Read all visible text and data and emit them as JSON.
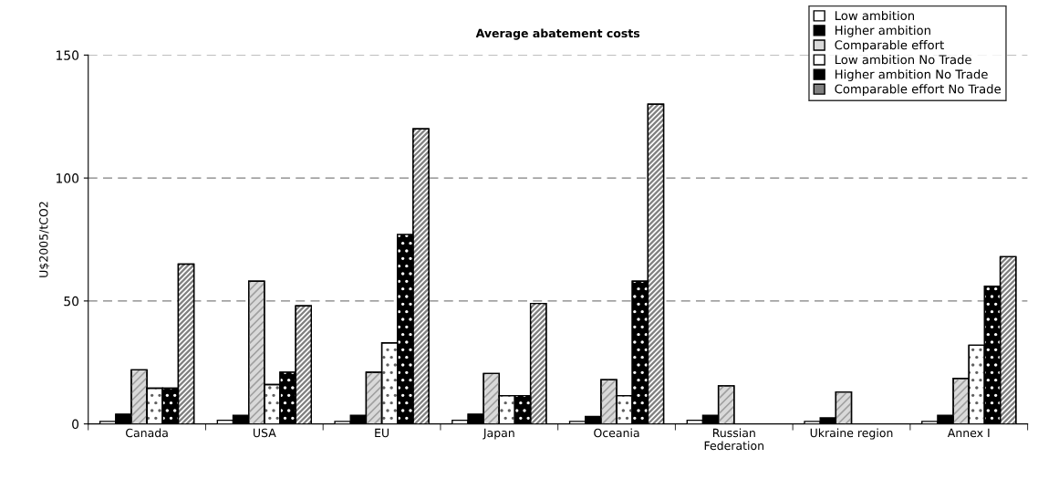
{
  "chart_data": {
    "type": "bar",
    "title": "Average abatement costs",
    "ylabel": "U$2005/tCO2",
    "categories": [
      "Canada",
      "USA",
      "EU",
      "Japan",
      "Oceania",
      "Russian\nFederation",
      "Ukraine region",
      "Annex I"
    ],
    "series": [
      {
        "name": "Low ambition",
        "color": "#ffffff",
        "values": [
          1,
          1.5,
          1,
          1.5,
          1,
          1.5,
          1,
          1
        ]
      },
      {
        "name": "Higher ambition",
        "color": "#000000",
        "values": [
          4,
          3.5,
          3.5,
          4,
          3,
          3.5,
          2.5,
          3.5
        ]
      },
      {
        "name": "Comparable effort",
        "color": "#d9d9d9",
        "values": [
          22,
          58,
          21,
          20.5,
          18,
          15.5,
          13,
          18.5
        ]
      },
      {
        "name": "Low ambition No Trade",
        "color": "#ffffff",
        "values": [
          14.5,
          16,
          33,
          11.5,
          11.5,
          null,
          null,
          32
        ]
      },
      {
        "name": "Higher ambition No Trade",
        "color": "#000000",
        "values": [
          14.5,
          21,
          77,
          11.5,
          58,
          null,
          null,
          56
        ]
      },
      {
        "name": "Comparable effort No Trade",
        "color": "#808080",
        "values": [
          65,
          48,
          120,
          49,
          130,
          null,
          null,
          68
        ]
      }
    ],
    "ylim": [
      0,
      150
    ],
    "yticks": [
      0,
      50,
      100,
      150
    ],
    "grid": "y",
    "legend": "top right"
  }
}
